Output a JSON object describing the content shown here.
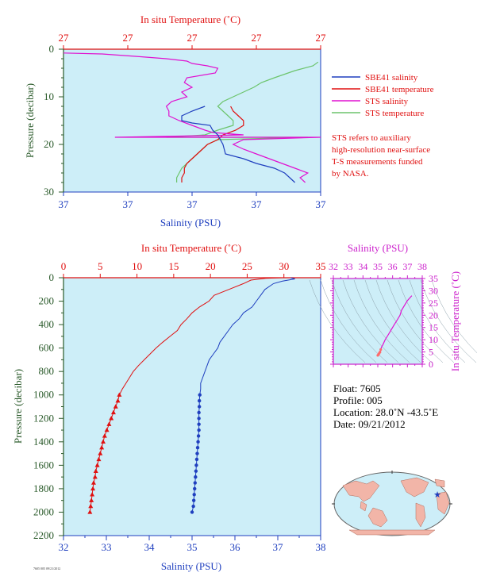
{
  "colors": {
    "plot_bg": "#cdeef8",
    "salinity": "#1f3fbf",
    "temperature": "#e01010",
    "sts_salinity": "#e010d0",
    "sts_temperature": "#6cc46c",
    "pressure_axis": "#2a5a2a",
    "ts_axis": "#cc22cc",
    "isopycnal": "#8a9ea8"
  },
  "top_panel": {
    "temp_axis_title": "In situ Temperature (˚C)",
    "temp_ticks": [
      "27",
      "27",
      "27",
      "27",
      "27"
    ],
    "sal_axis_title": "Salinity (PSU)",
    "sal_ticks": [
      "37",
      "37",
      "37",
      "37",
      "37"
    ],
    "pressure_axis_title": "Pressure (decibar)",
    "pressure_ticks": [
      "0",
      "10",
      "20",
      "30"
    ],
    "legend": [
      "SBE41 salinity",
      "SBE41 temperature",
      "STS salinity",
      "STS temperature"
    ],
    "note": [
      "STS refers to auxiliary",
      "high-resolution near-surface",
      "T-S measurements funded",
      "by NASA."
    ]
  },
  "main_panel": {
    "temp_axis_title": "In situ Temperature (˚C)",
    "temp_ticks": [
      "0",
      "5",
      "10",
      "15",
      "20",
      "25",
      "30",
      "35"
    ],
    "sal_axis_title": "Salinity (PSU)",
    "sal_ticks": [
      "32",
      "33",
      "34",
      "35",
      "36",
      "37",
      "38"
    ],
    "pressure_axis_title": "Pressure (decibar)",
    "pressure_ticks": [
      "0",
      "200",
      "400",
      "600",
      "800",
      "1000",
      "1200",
      "1400",
      "1600",
      "1800",
      "2000",
      "2200"
    ]
  },
  "ts_panel": {
    "sal_axis_title": "Salinity (PSU)",
    "sal_ticks": [
      "32",
      "33",
      "34",
      "35",
      "36",
      "37",
      "38"
    ],
    "temp_axis_title": "In situ Temperature (˚C)",
    "temp_ticks": [
      "0",
      "5",
      "10",
      "15",
      "20",
      "25",
      "30",
      "35"
    ]
  },
  "float_info": {
    "float": "Float:  7605",
    "profile": "Profile:  005",
    "location": "Location:  28.0˚N  -43.5˚E",
    "date": "Date:  09/21/2012"
  },
  "footer_small": "7605 005 09/21/2012",
  "map": {
    "marker_lat": 28.0,
    "marker_lon": -43.5
  },
  "chart_data": [
    {
      "type": "line",
      "name": "top-panel",
      "ylim": [
        30,
        0
      ],
      "series": [
        {
          "name": "SBE41 salinity",
          "color_key": "salinity",
          "axis": "salinity",
          "points": [
            [
              0.55,
              12
            ],
            [
              0.5,
              13
            ],
            [
              0.46,
              14
            ],
            [
              0.46,
              15
            ],
            [
              0.5,
              15.5
            ],
            [
              0.57,
              16
            ],
            [
              0.58,
              17
            ],
            [
              0.6,
              18
            ],
            [
              0.62,
              20
            ],
            [
              0.63,
              22
            ],
            [
              0.7,
              23
            ],
            [
              0.75,
              24
            ],
            [
              0.82,
              25
            ],
            [
              0.86,
              26
            ],
            [
              0.88,
              27
            ],
            [
              0.9,
              28
            ]
          ]
        },
        {
          "name": "SBE41 temperature",
          "color_key": "temperature",
          "axis": "temperature",
          "points": [
            [
              0.65,
              12
            ],
            [
              0.66,
              13
            ],
            [
              0.68,
              14
            ],
            [
              0.7,
              15
            ],
            [
              0.7,
              16
            ],
            [
              0.67,
              17
            ],
            [
              0.62,
              18
            ],
            [
              0.6,
              19
            ],
            [
              0.56,
              20
            ],
            [
              0.54,
              21
            ],
            [
              0.52,
              22
            ],
            [
              0.5,
              23
            ],
            [
              0.48,
              24
            ],
            [
              0.47,
              25
            ],
            [
              0.47,
              26
            ],
            [
              0.46,
              27
            ],
            [
              0.46,
              28
            ]
          ]
        },
        {
          "name": "STS salinity",
          "color_key": "sts_salinity",
          "axis": "salinity",
          "points": [
            [
              0.0,
              0.8
            ],
            [
              0.15,
              1
            ],
            [
              0.28,
              1.5
            ],
            [
              0.4,
              2
            ],
            [
              0.48,
              2.5
            ],
            [
              0.5,
              3
            ],
            [
              0.56,
              3.5
            ],
            [
              0.6,
              4
            ],
            [
              0.59,
              5
            ],
            [
              0.48,
              6
            ],
            [
              0.47,
              7
            ],
            [
              0.5,
              8
            ],
            [
              0.46,
              9
            ],
            [
              0.48,
              10
            ],
            [
              0.42,
              11
            ],
            [
              0.4,
              12
            ],
            [
              0.41,
              13
            ],
            [
              0.41,
              14
            ],
            [
              0.45,
              15
            ],
            [
              0.5,
              16
            ],
            [
              0.55,
              17
            ],
            [
              0.58,
              17.5
            ],
            [
              0.7,
              18
            ],
            [
              0.2,
              18.5
            ],
            [
              1.0,
              18.5
            ],
            [
              0.7,
              19
            ],
            [
              0.66,
              20
            ],
            [
              0.7,
              21
            ],
            [
              0.75,
              22
            ],
            [
              0.8,
              23
            ],
            [
              0.85,
              24
            ],
            [
              0.9,
              25
            ],
            [
              0.95,
              26
            ],
            [
              0.92,
              27
            ],
            [
              0.94,
              28
            ]
          ]
        },
        {
          "name": "STS temperature",
          "color_key": "sts_temperature",
          "axis": "temperature",
          "points": [
            [
              0.99,
              2.7
            ],
            [
              0.97,
              3.5
            ],
            [
              0.9,
              4.5
            ],
            [
              0.82,
              6
            ],
            [
              0.77,
              7
            ],
            [
              0.74,
              8
            ],
            [
              0.7,
              9
            ],
            [
              0.66,
              10
            ],
            [
              0.62,
              11
            ],
            [
              0.6,
              12
            ],
            [
              0.62,
              13
            ],
            [
              0.64,
              14
            ],
            [
              0.66,
              15
            ],
            [
              0.66,
              16
            ],
            [
              0.6,
              17
            ],
            [
              0.55,
              18
            ],
            [
              0.4,
              18.5
            ],
            [
              0.95,
              18.5
            ],
            [
              0.6,
              19
            ],
            [
              0.56,
              20
            ],
            [
              0.54,
              21
            ],
            [
              0.52,
              22
            ],
            [
              0.5,
              23
            ],
            [
              0.48,
              24
            ],
            [
              0.46,
              25
            ],
            [
              0.45,
              26
            ],
            [
              0.44,
              27
            ],
            [
              0.44,
              28
            ]
          ]
        }
      ]
    },
    {
      "type": "line",
      "name": "main-profile",
      "ylim": [
        2200,
        0
      ],
      "series": [
        {
          "name": "SBE41 temperature",
          "color_key": "temperature",
          "axis": "temperature",
          "marker": "triangle",
          "points": [
            [
              29.8,
              0
            ],
            [
              27.5,
              5
            ],
            [
              25.5,
              20
            ],
            [
              24.5,
              50
            ],
            [
              22.5,
              100
            ],
            [
              20.5,
              150
            ],
            [
              19.8,
              200
            ],
            [
              18.5,
              250
            ],
            [
              17.5,
              300
            ],
            [
              16.8,
              350
            ],
            [
              16.0,
              400
            ],
            [
              15.5,
              450
            ],
            [
              14.5,
              500
            ],
            [
              13.5,
              550
            ],
            [
              12.6,
              600
            ],
            [
              11.8,
              650
            ],
            [
              11.0,
              700
            ],
            [
              10.2,
              750
            ],
            [
              9.5,
              800
            ],
            [
              9.0,
              850
            ],
            [
              8.5,
              900
            ],
            [
              8.0,
              950
            ],
            [
              7.6,
              1000
            ],
            [
              7.4,
              1050
            ],
            [
              7.1,
              1100
            ],
            [
              6.8,
              1150
            ],
            [
              6.5,
              1200
            ],
            [
              6.2,
              1250
            ],
            [
              5.9,
              1300
            ],
            [
              5.6,
              1350
            ],
            [
              5.4,
              1400
            ],
            [
              5.2,
              1450
            ],
            [
              5.0,
              1500
            ],
            [
              4.8,
              1550
            ],
            [
              4.6,
              1600
            ],
            [
              4.4,
              1650
            ],
            [
              4.3,
              1700
            ],
            [
              4.1,
              1750
            ],
            [
              4.0,
              1800
            ],
            [
              3.9,
              1850
            ],
            [
              3.8,
              1900
            ],
            [
              3.7,
              1950
            ],
            [
              3.6,
              2000
            ]
          ]
        },
        {
          "name": "SBE41 salinity",
          "color_key": "salinity",
          "axis": "salinity",
          "marker": "circle",
          "points": [
            [
              37.3,
              0
            ],
            [
              37.4,
              10
            ],
            [
              37.1,
              30
            ],
            [
              36.9,
              50
            ],
            [
              36.7,
              100
            ],
            [
              36.6,
              150
            ],
            [
              36.5,
              200
            ],
            [
              36.4,
              250
            ],
            [
              36.2,
              300
            ],
            [
              36.1,
              350
            ],
            [
              35.95,
              400
            ],
            [
              35.85,
              450
            ],
            [
              35.75,
              500
            ],
            [
              35.65,
              550
            ],
            [
              35.6,
              600
            ],
            [
              35.5,
              650
            ],
            [
              35.4,
              700
            ],
            [
              35.35,
              750
            ],
            [
              35.3,
              800
            ],
            [
              35.25,
              850
            ],
            [
              35.2,
              900
            ],
            [
              35.2,
              950
            ],
            [
              35.18,
              1000
            ],
            [
              35.17,
              1050
            ],
            [
              35.17,
              1100
            ],
            [
              35.16,
              1150
            ],
            [
              35.16,
              1200
            ],
            [
              35.16,
              1250
            ],
            [
              35.16,
              1300
            ],
            [
              35.15,
              1350
            ],
            [
              35.14,
              1400
            ],
            [
              35.13,
              1450
            ],
            [
              35.12,
              1500
            ],
            [
              35.11,
              1550
            ],
            [
              35.1,
              1600
            ],
            [
              35.09,
              1650
            ],
            [
              35.08,
              1700
            ],
            [
              35.07,
              1750
            ],
            [
              35.06,
              1800
            ],
            [
              35.05,
              1850
            ],
            [
              35.04,
              1900
            ],
            [
              35.03,
              1950
            ],
            [
              35.0,
              2000
            ]
          ]
        }
      ]
    },
    {
      "type": "scatter",
      "name": "ts-diagram",
      "xlim": [
        32,
        38
      ],
      "ylim": [
        0,
        35
      ],
      "series": [
        {
          "name": "T-S",
          "color_key": "sts_salinity",
          "points": [
            [
              37.3,
              28
            ],
            [
              37.0,
              26
            ],
            [
              36.8,
              24
            ],
            [
              36.6,
              22
            ],
            [
              36.5,
              20
            ],
            [
              36.3,
              18
            ],
            [
              36.1,
              16
            ],
            [
              35.9,
              14
            ],
            [
              35.7,
              12
            ],
            [
              35.5,
              10
            ],
            [
              35.35,
              8
            ],
            [
              35.25,
              7
            ],
            [
              35.2,
              6
            ],
            [
              35.15,
              5
            ],
            [
              35.1,
              4.5
            ],
            [
              35.05,
              4
            ],
            [
              35.0,
              3.6
            ]
          ]
        }
      ]
    }
  ]
}
